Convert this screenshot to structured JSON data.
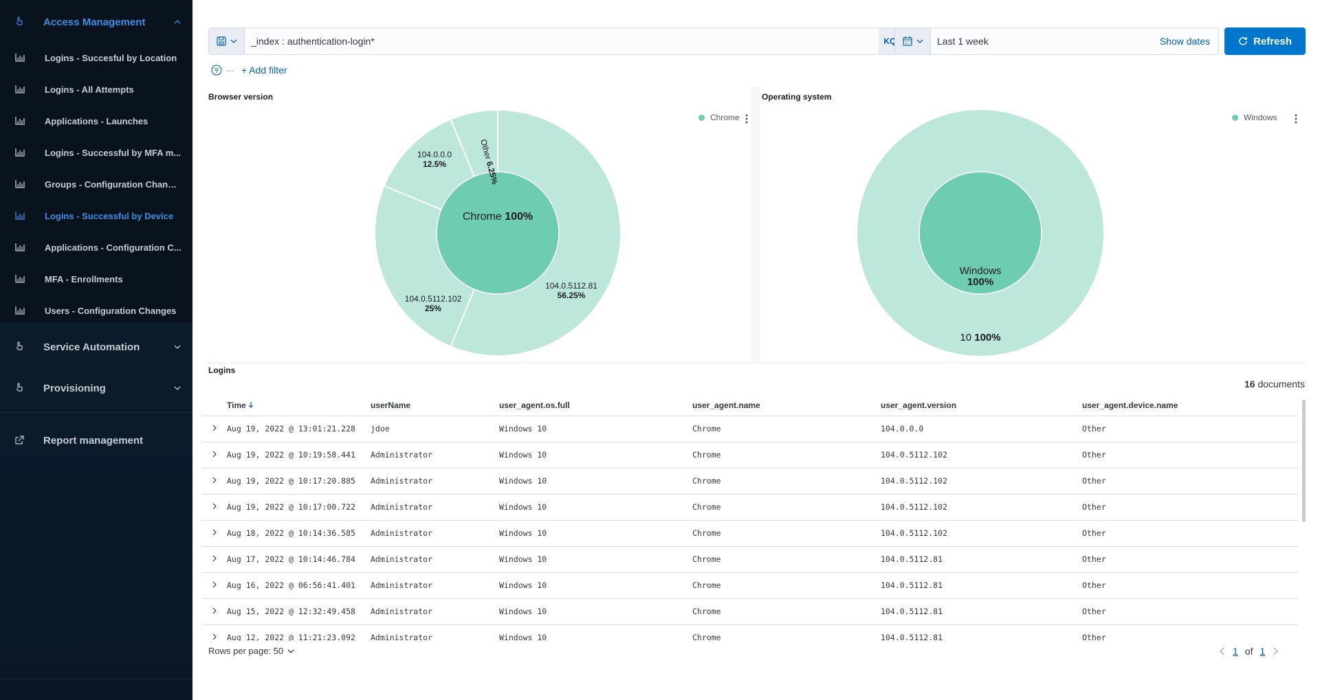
{
  "sidebar": {
    "sections": [
      {
        "label": "Access Management",
        "icon": "hand-pointer-icon",
        "expanded": true
      },
      {
        "label": "Service Automation",
        "icon": "hand-pointer-icon",
        "expanded": false
      },
      {
        "label": "Provisioning",
        "icon": "hand-pointer-icon",
        "expanded": false
      },
      {
        "label": "Report management",
        "icon": "external-link-icon"
      }
    ],
    "items": [
      {
        "label": "Logins - Succesful by Location",
        "icon": "bar-chart-icon"
      },
      {
        "label": "Logins - All Attempts",
        "icon": "bar-chart-icon"
      },
      {
        "label": "Applications - Launches",
        "icon": "bar-chart-icon"
      },
      {
        "label": "Logins - Successful by MFA m...",
        "icon": "bar-chart-icon"
      },
      {
        "label": "Groups - Configuration Changes",
        "icon": "bar-chart-icon"
      },
      {
        "label": "Logins - Successful by Device",
        "icon": "bar-chart-icon",
        "active": true
      },
      {
        "label": "Applications - Configuration C...",
        "icon": "bar-chart-icon"
      },
      {
        "label": "MFA - Enrollments",
        "icon": "bar-chart-icon"
      },
      {
        "label": "Users - Configuration Changes",
        "icon": "bar-chart-icon"
      }
    ],
    "active_color": "#3b8fe6"
  },
  "query": {
    "value": "_index : authentication-login*",
    "language": "KQL",
    "saved_query_icon": "save-icon"
  },
  "time": {
    "range": "Last 1 week",
    "show_dates": "Show dates",
    "refresh": "Refresh",
    "calendar_icon": "calendar-icon"
  },
  "filters": {
    "add_label": "+ Add filter"
  },
  "browser_panel": {
    "title": "Browser version",
    "legend": [
      "Chrome"
    ],
    "inner_label": "Chrome",
    "inner_pct": "100%",
    "slices": [
      {
        "label": "104.0.5112.81",
        "pct": "56.25%"
      },
      {
        "label": "104.0.5112.102",
        "pct": "25%"
      },
      {
        "label": "104.0.0.0",
        "pct": "12.5%"
      },
      {
        "label": "Other",
        "pct": "6.25%"
      }
    ]
  },
  "os_panel": {
    "title": "Operating system",
    "legend": [
      "Windows"
    ],
    "inner_label": "Windows",
    "inner_pct": "100%",
    "outer_label": "10",
    "outer_pct": "100%"
  },
  "chart_data": [
    {
      "type": "pie",
      "title": "Browser version",
      "inner": {
        "categories": [
          "Chrome"
        ],
        "values": [
          100
        ]
      },
      "outer": {
        "categories": [
          "104.0.5112.81",
          "104.0.5112.102",
          "104.0.0.0",
          "Other"
        ],
        "values": [
          56.25,
          25,
          12.5,
          6.25
        ]
      },
      "colors": {
        "inner": "#6dccb1",
        "outer": "#bce7da"
      }
    },
    {
      "type": "pie",
      "title": "Operating system",
      "inner": {
        "categories": [
          "Windows"
        ],
        "values": [
          100
        ]
      },
      "outer": {
        "categories": [
          "10"
        ],
        "values": [
          100
        ]
      },
      "colors": {
        "inner": "#6dccb1",
        "outer": "#bce7da"
      }
    }
  ],
  "logins": {
    "title": "Logins",
    "doc_count": "16",
    "doc_label": "documents",
    "columns": [
      "Time",
      "userName",
      "user_agent.os.full",
      "user_agent.name",
      "user_agent.version",
      "user_agent.device.name"
    ],
    "rows": [
      [
        "Aug 19, 2022 @ 13:01:21.228",
        "jdoe",
        "Windows 10",
        "Chrome",
        "104.0.0.0",
        "Other"
      ],
      [
        "Aug 19, 2022 @ 10:19:58.441",
        "Administrator",
        "Windows 10",
        "Chrome",
        "104.0.5112.102",
        "Other"
      ],
      [
        "Aug 19, 2022 @ 10:17:20.885",
        "Administrator",
        "Windows 10",
        "Chrome",
        "104.0.5112.102",
        "Other"
      ],
      [
        "Aug 19, 2022 @ 10:17:00.722",
        "Administrator",
        "Windows 10",
        "Chrome",
        "104.0.5112.102",
        "Other"
      ],
      [
        "Aug 18, 2022 @ 10:14:36.585",
        "Administrator",
        "Windows 10",
        "Chrome",
        "104.0.5112.102",
        "Other"
      ],
      [
        "Aug 17, 2022 @ 10:14:46.784",
        "Administrator",
        "Windows 10",
        "Chrome",
        "104.0.5112.81",
        "Other"
      ],
      [
        "Aug 16, 2022 @ 06:56:41.401",
        "Administrator",
        "Windows 10",
        "Chrome",
        "104.0.5112.81",
        "Other"
      ],
      [
        "Aug 15, 2022 @ 12:32:49.458",
        "Administrator",
        "Windows 10",
        "Chrome",
        "104.0.5112.81",
        "Other"
      ],
      [
        "Aug 12, 2022 @ 11:21:23.092",
        "Administrator",
        "Windows 10",
        "Chrome",
        "104.0.5112.81",
        "Other"
      ]
    ],
    "rows_per_page_label": "Rows per page: 50",
    "page_current": "1",
    "page_of": "of",
    "page_total": "1"
  }
}
